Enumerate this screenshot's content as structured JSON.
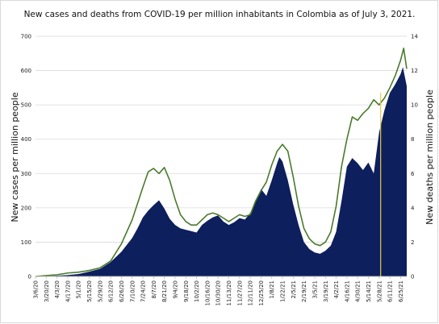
{
  "chart_data": {
    "type": "bar+line",
    "title": "New cases and deaths from COVID-19 per million inhabitants in Colombia as of July 3, 2021.",
    "ylabel": "New cases per million people",
    "y2label": "New deaths per million people",
    "ylim": [
      0,
      700
    ],
    "y2lim": [
      0,
      14
    ],
    "yticks": [
      "0",
      "100",
      "200",
      "300",
      "400",
      "500",
      "600",
      "700"
    ],
    "y2ticks": [
      "0",
      "2",
      "4",
      "6",
      "8",
      "10",
      "12",
      "14"
    ],
    "grid": true,
    "x_start": "3/6/20",
    "x_end": "7/3/21",
    "xticks": [
      "3/6/20",
      "3/20/20",
      "4/3/20",
      "4/17/20",
      "5/1/20",
      "5/15/20",
      "5/29/20",
      "6/12/20",
      "6/26/20",
      "7/10/20",
      "7/24/20",
      "8/7/20",
      "8/21/20",
      "9/4/20",
      "9/18/20",
      "10/2/20",
      "10/16/20",
      "10/30/20",
      "11/13/20",
      "11/27/20",
      "12/11/20",
      "12/25/20",
      "1/8/21",
      "1/22/21",
      "2/5/21",
      "2/19/21",
      "3/5/21",
      "3/19/21",
      "4/2/21",
      "4/16/21",
      "4/30/21",
      "5/14/21",
      "5/28/21",
      "6/11/21",
      "6/25/21"
    ],
    "series": [
      {
        "kind": "area",
        "color": "#0d1f5c",
        "axis": "left",
        "points": [
          [
            "3/6/20",
            0
          ],
          [
            "4/1/20",
            2
          ],
          [
            "4/17/20",
            4
          ],
          [
            "5/1/20",
            7
          ],
          [
            "5/15/20",
            14
          ],
          [
            "5/29/20",
            22
          ],
          [
            "6/12/20",
            42
          ],
          [
            "6/26/20",
            72
          ],
          [
            "7/3/20",
            92
          ],
          [
            "7/10/20",
            112
          ],
          [
            "7/17/20",
            140
          ],
          [
            "7/24/20",
            172
          ],
          [
            "7/31/20",
            192
          ],
          [
            "8/7/20",
            208
          ],
          [
            "8/14/20",
            222
          ],
          [
            "8/21/20",
            198
          ],
          [
            "8/28/20",
            168
          ],
          [
            "9/4/20",
            150
          ],
          [
            "9/11/20",
            140
          ],
          [
            "9/18/20",
            136
          ],
          [
            "9/25/20",
            132
          ],
          [
            "10/2/20",
            128
          ],
          [
            "10/9/20",
            150
          ],
          [
            "10/16/20",
            162
          ],
          [
            "10/23/20",
            172
          ],
          [
            "10/30/20",
            178
          ],
          [
            "11/6/20",
            160
          ],
          [
            "11/13/20",
            150
          ],
          [
            "11/20/20",
            158
          ],
          [
            "11/27/20",
            170
          ],
          [
            "12/4/20",
            166
          ],
          [
            "12/11/20",
            185
          ],
          [
            "12/18/20",
            220
          ],
          [
            "12/25/20",
            255
          ],
          [
            "1/1/21",
            235
          ],
          [
            "1/8/21",
            280
          ],
          [
            "1/15/21",
            330
          ],
          [
            "1/18/21",
            348
          ],
          [
            "1/22/21",
            335
          ],
          [
            "1/29/21",
            280
          ],
          [
            "2/5/21",
            210
          ],
          [
            "2/12/21",
            150
          ],
          [
            "2/19/21",
            100
          ],
          [
            "2/26/21",
            80
          ],
          [
            "3/5/21",
            70
          ],
          [
            "3/12/21",
            66
          ],
          [
            "3/19/21",
            75
          ],
          [
            "3/26/21",
            90
          ],
          [
            "4/2/21",
            130
          ],
          [
            "4/9/21",
            220
          ],
          [
            "4/16/21",
            320
          ],
          [
            "4/23/21",
            345
          ],
          [
            "4/30/21",
            330
          ],
          [
            "5/7/21",
            310
          ],
          [
            "5/14/21",
            332
          ],
          [
            "5/21/21",
            300
          ],
          [
            "5/28/21",
            420
          ],
          [
            "6/4/21",
            485
          ],
          [
            "6/11/21",
            535
          ],
          [
            "6/18/21",
            560
          ],
          [
            "6/25/21",
            590
          ],
          [
            "6/28/21",
            610
          ],
          [
            "7/3/21",
            555
          ]
        ]
      },
      {
        "kind": "line",
        "color": "#4a7a2c",
        "axis": "right",
        "points": [
          [
            "3/6/20",
            0
          ],
          [
            "3/20/20",
            0.05
          ],
          [
            "4/3/20",
            0.1
          ],
          [
            "4/17/20",
            0.2
          ],
          [
            "5/1/20",
            0.25
          ],
          [
            "5/15/20",
            0.35
          ],
          [
            "5/29/20",
            0.5
          ],
          [
            "6/12/20",
            0.9
          ],
          [
            "6/26/20",
            1.9
          ],
          [
            "7/10/20",
            3.3
          ],
          [
            "7/24/20",
            5.2
          ],
          [
            "7/31/20",
            6.1
          ],
          [
            "8/7/20",
            6.3
          ],
          [
            "8/14/20",
            6.0
          ],
          [
            "8/21/20",
            6.35
          ],
          [
            "8/28/20",
            5.6
          ],
          [
            "9/4/20",
            4.5
          ],
          [
            "9/11/20",
            3.6
          ],
          [
            "9/18/20",
            3.2
          ],
          [
            "9/25/20",
            3.0
          ],
          [
            "10/2/20",
            3.0
          ],
          [
            "10/9/20",
            3.3
          ],
          [
            "10/16/20",
            3.6
          ],
          [
            "10/23/20",
            3.7
          ],
          [
            "10/30/20",
            3.6
          ],
          [
            "11/6/20",
            3.4
          ],
          [
            "11/13/20",
            3.2
          ],
          [
            "11/20/20",
            3.4
          ],
          [
            "11/27/20",
            3.6
          ],
          [
            "12/4/20",
            3.5
          ],
          [
            "12/11/20",
            3.6
          ],
          [
            "12/18/20",
            4.4
          ],
          [
            "12/25/20",
            5.0
          ],
          [
            "1/1/21",
            5.5
          ],
          [
            "1/8/21",
            6.5
          ],
          [
            "1/15/21",
            7.3
          ],
          [
            "1/22/21",
            7.7
          ],
          [
            "1/29/21",
            7.3
          ],
          [
            "2/5/21",
            5.8
          ],
          [
            "2/12/21",
            4.1
          ],
          [
            "2/19/21",
            2.8
          ],
          [
            "2/26/21",
            2.2
          ],
          [
            "3/5/21",
            1.9
          ],
          [
            "3/12/21",
            1.8
          ],
          [
            "3/19/21",
            2.0
          ],
          [
            "3/26/21",
            2.6
          ],
          [
            "4/2/21",
            4.1
          ],
          [
            "4/9/21",
            6.4
          ],
          [
            "4/16/21",
            8.0
          ],
          [
            "4/23/21",
            9.3
          ],
          [
            "4/30/21",
            9.1
          ],
          [
            "5/7/21",
            9.5
          ],
          [
            "5/14/21",
            9.8
          ],
          [
            "5/21/21",
            10.3
          ],
          [
            "5/28/21",
            10.0
          ],
          [
            "6/4/21",
            10.4
          ],
          [
            "6/11/21",
            11.0
          ],
          [
            "6/18/21",
            11.7
          ],
          [
            "6/25/21",
            12.6
          ],
          [
            "6/29/21",
            13.3
          ],
          [
            "7/3/21",
            12.1
          ]
        ]
      }
    ],
    "annotations": [
      {
        "kind": "vertical-line",
        "x": "5/30/21",
        "color": "#e6c84a"
      }
    ]
  }
}
